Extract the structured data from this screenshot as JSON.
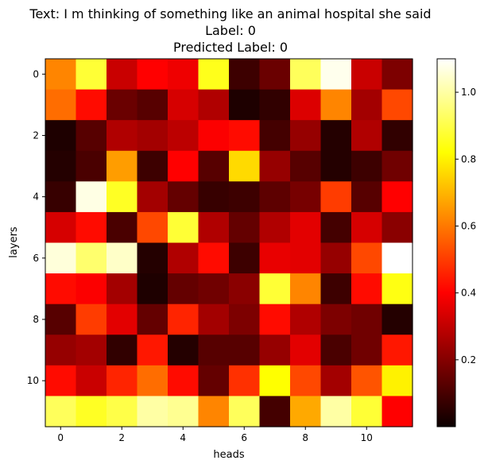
{
  "chart_data": {
    "type": "heatmap",
    "title_lines": [
      "Text: I m thinking of something like an animal hospital she said",
      "Label: 0",
      "Predicted Label: 0"
    ],
    "xlabel": "heads",
    "ylabel": "layers",
    "x_ticks": [
      "0",
      "2",
      "4",
      "6",
      "8",
      "10"
    ],
    "y_ticks": [
      "0",
      "2",
      "4",
      "6",
      "8",
      "10"
    ],
    "colormap": "hot",
    "colorbar_range": [
      0.0,
      1.1
    ],
    "colorbar_ticks": [
      "0.2",
      "0.4",
      "0.6",
      "0.8",
      "1.0"
    ],
    "values": [
      [
        0.62,
        0.88,
        0.3,
        0.4,
        0.36,
        0.85,
        0.08,
        0.15,
        0.92,
        1.08,
        0.3,
        0.18
      ],
      [
        0.58,
        0.42,
        0.15,
        0.12,
        0.32,
        0.26,
        0.03,
        0.06,
        0.33,
        0.62,
        0.24,
        0.52
      ],
      [
        0.03,
        0.12,
        0.26,
        0.24,
        0.28,
        0.38,
        0.42,
        0.09,
        0.22,
        0.04,
        0.26,
        0.06
      ],
      [
        0.04,
        0.1,
        0.66,
        0.08,
        0.39,
        0.12,
        0.76,
        0.22,
        0.12,
        0.04,
        0.08,
        0.16
      ],
      [
        0.07,
        1.07,
        0.86,
        0.24,
        0.14,
        0.07,
        0.08,
        0.13,
        0.17,
        0.5,
        0.12,
        0.4
      ],
      [
        0.32,
        0.42,
        0.1,
        0.52,
        0.88,
        0.26,
        0.14,
        0.26,
        0.34,
        0.09,
        0.32,
        0.2
      ],
      [
        1.06,
        0.94,
        1.04,
        0.04,
        0.26,
        0.42,
        0.08,
        0.35,
        0.34,
        0.22,
        0.52,
        1.1
      ],
      [
        0.42,
        0.38,
        0.24,
        0.03,
        0.14,
        0.16,
        0.2,
        0.88,
        0.62,
        0.08,
        0.42,
        0.84
      ],
      [
        0.12,
        0.5,
        0.34,
        0.14,
        0.46,
        0.24,
        0.18,
        0.42,
        0.26,
        0.18,
        0.16,
        0.04
      ],
      [
        0.22,
        0.24,
        0.06,
        0.44,
        0.04,
        0.12,
        0.12,
        0.22,
        0.34,
        0.1,
        0.16,
        0.44
      ],
      [
        0.42,
        0.3,
        0.46,
        0.58,
        0.42,
        0.14,
        0.48,
        0.82,
        0.52,
        0.24,
        0.54,
        0.8
      ],
      [
        0.92,
        0.86,
        0.9,
        1.0,
        0.98,
        0.62,
        0.92,
        0.09,
        0.68,
        1.0,
        0.88,
        0.4
      ]
    ]
  }
}
